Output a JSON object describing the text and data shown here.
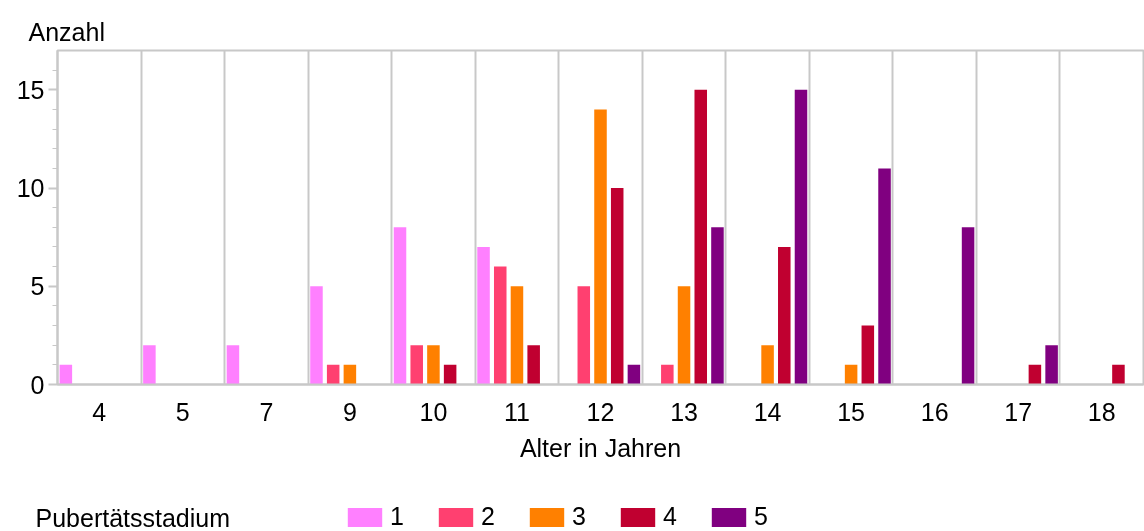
{
  "chart_data": {
    "type": "bar",
    "xlabel": "Alter in Jahren",
    "ylabel": "Anzahl",
    "legend_title": "Pubertätsstadium",
    "categories": [
      "4",
      "5",
      "7",
      "9",
      "10",
      "11",
      "12",
      "13",
      "14",
      "15",
      "16",
      "17",
      "18"
    ],
    "series": [
      {
        "name": "1",
        "color": "#ff80ff",
        "values": [
          1,
          2,
          2,
          5,
          8,
          7,
          null,
          null,
          null,
          null,
          null,
          null,
          null
        ]
      },
      {
        "name": "2",
        "color": "#ff4070",
        "values": [
          null,
          null,
          null,
          1,
          2,
          6,
          5,
          1,
          null,
          null,
          null,
          null,
          null
        ]
      },
      {
        "name": "3",
        "color": "#ff8000",
        "values": [
          null,
          null,
          null,
          1,
          2,
          5,
          14,
          5,
          2,
          1,
          null,
          null,
          null
        ]
      },
      {
        "name": "4",
        "color": "#c00030",
        "values": [
          null,
          null,
          null,
          null,
          1,
          2,
          10,
          15,
          7,
          3,
          null,
          1,
          1
        ]
      },
      {
        "name": "5",
        "color": "#800080",
        "values": [
          null,
          null,
          null,
          null,
          null,
          null,
          1,
          8,
          15,
          11,
          8,
          2,
          null
        ]
      }
    ],
    "ylim": [
      0,
      17
    ],
    "yticks": [
      0,
      {
        "value": 1,
        "label": null
      },
      {
        "value": 2,
        "label": null
      },
      {
        "value": 3,
        "label": null
      },
      {
        "value": 4,
        "label": null
      },
      5,
      {
        "value": 6,
        "label": null
      },
      {
        "value": 7,
        "label": null
      },
      {
        "value": 8,
        "label": null
      },
      {
        "value": 9,
        "label": null
      },
      10,
      {
        "value": 11,
        "label": null
      },
      {
        "value": 12,
        "label": null
      },
      {
        "value": 13,
        "label": null
      },
      {
        "value": 14,
        "label": null
      },
      15,
      {
        "value": 16,
        "label": null
      }
    ],
    "grid": "x",
    "legend": "bottom"
  }
}
